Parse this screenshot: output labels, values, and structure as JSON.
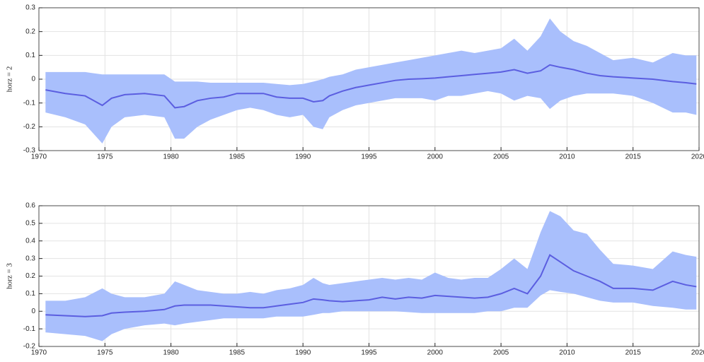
{
  "chart_data": [
    {
      "type": "line",
      "ylabel": "horz = 2",
      "x": [
        1970.5,
        1972,
        1973.5,
        1974.8,
        1975.5,
        1976.5,
        1978,
        1979.5,
        1980.3,
        1981,
        1982,
        1983,
        1984,
        1985,
        1986,
        1987,
        1988,
        1989,
        1990,
        1990.8,
        1991.5,
        1992,
        1993,
        1994,
        1995,
        1996,
        1997,
        1998,
        1999,
        2000,
        2001,
        2002,
        2003,
        2004,
        2005,
        2006,
        2007,
        2008,
        2008.7,
        2009.5,
        2010.5,
        2011.5,
        2012.5,
        2013.5,
        2015,
        2016.5,
        2018,
        2019,
        2019.8
      ],
      "values": [
        -0.045,
        -0.06,
        -0.07,
        -0.11,
        -0.08,
        -0.065,
        -0.06,
        -0.07,
        -0.12,
        -0.115,
        -0.09,
        -0.08,
        -0.075,
        -0.06,
        -0.06,
        -0.06,
        -0.075,
        -0.08,
        -0.08,
        -0.095,
        -0.09,
        -0.07,
        -0.05,
        -0.035,
        -0.025,
        -0.015,
        -0.005,
        0.0,
        0.002,
        0.005,
        0.01,
        0.015,
        0.02,
        0.025,
        0.03,
        0.04,
        0.025,
        0.035,
        0.06,
        0.05,
        0.04,
        0.025,
        0.015,
        0.01,
        0.005,
        0.0,
        -0.01,
        -0.015,
        -0.02
      ],
      "upper": [
        0.03,
        0.03,
        0.03,
        0.02,
        0.02,
        0.02,
        0.02,
        0.02,
        -0.01,
        -0.01,
        -0.01,
        -0.015,
        -0.015,
        -0.015,
        -0.015,
        -0.015,
        -0.02,
        -0.025,
        -0.02,
        -0.01,
        0.0,
        0.01,
        0.02,
        0.04,
        0.05,
        0.06,
        0.07,
        0.08,
        0.09,
        0.1,
        0.11,
        0.12,
        0.11,
        0.12,
        0.13,
        0.17,
        0.12,
        0.18,
        0.255,
        0.2,
        0.16,
        0.14,
        0.11,
        0.08,
        0.09,
        0.07,
        0.11,
        0.1,
        0.1
      ],
      "lower": [
        -0.14,
        -0.16,
        -0.19,
        -0.27,
        -0.2,
        -0.16,
        -0.15,
        -0.16,
        -0.25,
        -0.25,
        -0.2,
        -0.17,
        -0.15,
        -0.13,
        -0.12,
        -0.13,
        -0.15,
        -0.16,
        -0.15,
        -0.2,
        -0.21,
        -0.16,
        -0.13,
        -0.11,
        -0.1,
        -0.09,
        -0.08,
        -0.08,
        -0.08,
        -0.09,
        -0.07,
        -0.07,
        -0.06,
        -0.05,
        -0.06,
        -0.09,
        -0.07,
        -0.08,
        -0.125,
        -0.09,
        -0.07,
        -0.06,
        -0.06,
        -0.06,
        -0.07,
        -0.1,
        -0.14,
        -0.14,
        -0.15
      ],
      "color": "#5b5ee0",
      "band_color": "#a9bffc",
      "xlim": [
        1970,
        2020
      ],
      "xticks": [
        1970,
        1975,
        1980,
        1985,
        1990,
        1995,
        2000,
        2005,
        2010,
        2015,
        2020
      ],
      "ylim": [
        -0.3,
        0.3
      ],
      "yticks": [
        -0.3,
        -0.2,
        -0.1,
        0,
        0.1,
        0.2,
        0.3
      ],
      "grid": true
    },
    {
      "type": "line",
      "ylabel": "horz = 3",
      "x": [
        1970.5,
        1972,
        1973.5,
        1974.8,
        1975.5,
        1976.5,
        1978,
        1979.5,
        1980.3,
        1981,
        1982,
        1983,
        1984,
        1985,
        1986,
        1987,
        1988,
        1989,
        1990,
        1990.8,
        1991.5,
        1992,
        1993,
        1994,
        1995,
        1996,
        1997,
        1998,
        1999,
        2000,
        2001,
        2002,
        2003,
        2004,
        2005,
        2006,
        2007,
        2008,
        2008.7,
        2009.5,
        2010.5,
        2011.5,
        2012.5,
        2013.5,
        2015,
        2016.5,
        2018,
        2019,
        2019.8
      ],
      "values": [
        -0.02,
        -0.025,
        -0.03,
        -0.025,
        -0.01,
        -0.005,
        0.0,
        0.01,
        0.03,
        0.035,
        0.035,
        0.035,
        0.03,
        0.025,
        0.02,
        0.02,
        0.03,
        0.04,
        0.05,
        0.07,
        0.065,
        0.06,
        0.055,
        0.06,
        0.065,
        0.08,
        0.07,
        0.08,
        0.075,
        0.09,
        0.085,
        0.08,
        0.075,
        0.08,
        0.1,
        0.13,
        0.1,
        0.2,
        0.32,
        0.28,
        0.23,
        0.2,
        0.17,
        0.13,
        0.13,
        0.12,
        0.17,
        0.15,
        0.14
      ],
      "upper": [
        0.06,
        0.06,
        0.08,
        0.13,
        0.1,
        0.08,
        0.08,
        0.1,
        0.17,
        0.15,
        0.12,
        0.11,
        0.1,
        0.1,
        0.11,
        0.1,
        0.12,
        0.13,
        0.15,
        0.19,
        0.16,
        0.15,
        0.16,
        0.17,
        0.18,
        0.19,
        0.18,
        0.19,
        0.18,
        0.22,
        0.19,
        0.18,
        0.19,
        0.19,
        0.24,
        0.3,
        0.24,
        0.45,
        0.57,
        0.54,
        0.46,
        0.44,
        0.35,
        0.27,
        0.26,
        0.24,
        0.34,
        0.32,
        0.31
      ],
      "lower": [
        -0.12,
        -0.13,
        -0.14,
        -0.17,
        -0.13,
        -0.1,
        -0.08,
        -0.07,
        -0.08,
        -0.07,
        -0.06,
        -0.05,
        -0.04,
        -0.04,
        -0.04,
        -0.04,
        -0.03,
        -0.03,
        -0.03,
        -0.02,
        -0.01,
        -0.01,
        0.0,
        0.0,
        0.0,
        0.0,
        0.0,
        -0.005,
        -0.01,
        -0.01,
        -0.01,
        -0.01,
        -0.01,
        0.0,
        0.0,
        0.02,
        0.02,
        0.09,
        0.12,
        0.11,
        0.1,
        0.08,
        0.06,
        0.05,
        0.05,
        0.03,
        0.02,
        0.01,
        0.01
      ],
      "color": "#5b5ee0",
      "band_color": "#a9bffc",
      "xlim": [
        1970,
        2020
      ],
      "xticks": [
        1970,
        1975,
        1980,
        1985,
        1990,
        1995,
        2000,
        2005,
        2010,
        2015,
        2020
      ],
      "ylim": [
        -0.2,
        0.6
      ],
      "yticks": [
        -0.2,
        -0.1,
        0,
        0.1,
        0.2,
        0.3,
        0.4,
        0.5,
        0.6
      ],
      "grid": true
    }
  ]
}
